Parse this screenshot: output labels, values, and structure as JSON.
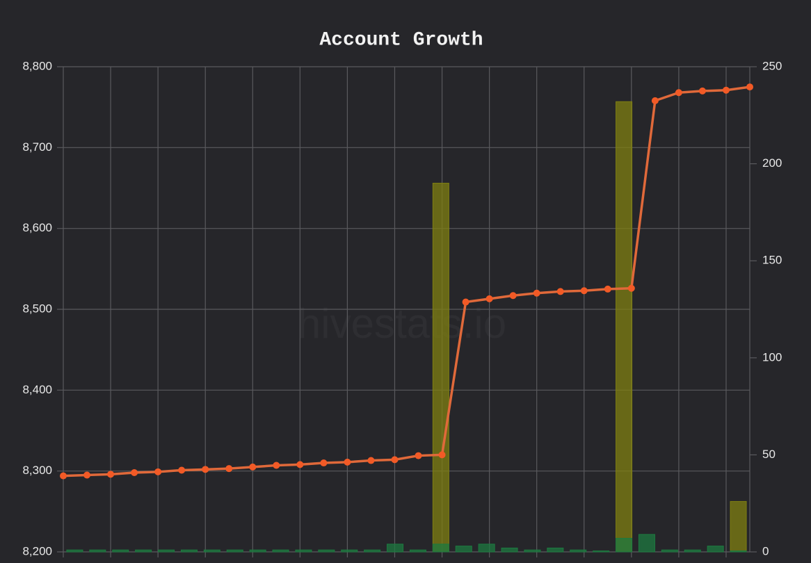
{
  "chart_data": {
    "type": "bar-line",
    "title": "Account Growth",
    "watermark": "hivestats.io",
    "categories": [
      null,
      null,
      null,
      null,
      null,
      null,
      null,
      null,
      null,
      null,
      null,
      null,
      null,
      null,
      null,
      null,
      null,
      null,
      null,
      null,
      null,
      null,
      null,
      null,
      null,
      null,
      null,
      null,
      null,
      null
    ],
    "series": [
      {
        "type": "line",
        "color": "#e0693a",
        "marker_color": "#f25a26",
        "values": [
          8294,
          8295,
          8296,
          8298,
          8299,
          8301,
          8302,
          8303,
          8305,
          8307,
          8308,
          8310,
          8311,
          8313,
          8314,
          8319,
          8320,
          8509,
          8513,
          8517,
          8520,
          8522,
          8523,
          8525,
          8526,
          8758,
          8768,
          8770,
          8771,
          8775
        ]
      },
      {
        "type": "bar",
        "axis": "y2",
        "color": "#7f7f12",
        "values": [
          0,
          0,
          0,
          0,
          0,
          0,
          0,
          0,
          0,
          0,
          0,
          0,
          0,
          0,
          0,
          0,
          190,
          0,
          0,
          0,
          0,
          0,
          0,
          0,
          232,
          0,
          0,
          0,
          0,
          26
        ]
      },
      {
        "type": "bar",
        "axis": "y2",
        "color": "#1d7a40",
        "values": [
          1,
          1,
          1,
          1,
          1,
          1,
          1,
          1,
          1,
          1,
          1,
          1,
          1,
          1,
          4,
          1,
          4,
          3,
          4,
          2,
          1,
          2,
          1,
          0.5,
          7,
          9,
          1,
          1,
          3,
          0.5
        ]
      }
    ],
    "ylim": [
      8200,
      8800
    ],
    "yticks": [
      {
        "value": 8200,
        "label": "8,200"
      },
      {
        "value": 8300,
        "label": "8,300"
      },
      {
        "value": 8400,
        "label": "8,400"
      },
      {
        "value": 8500,
        "label": "8,500"
      },
      {
        "value": 8600,
        "label": "8,600"
      },
      {
        "value": 8700,
        "label": "8,700"
      },
      {
        "value": 8800,
        "label": "8,800"
      }
    ],
    "y2lim": [
      0,
      250
    ],
    "y2ticks": [
      0,
      50,
      100,
      150,
      200,
      250
    ],
    "grid": true
  }
}
